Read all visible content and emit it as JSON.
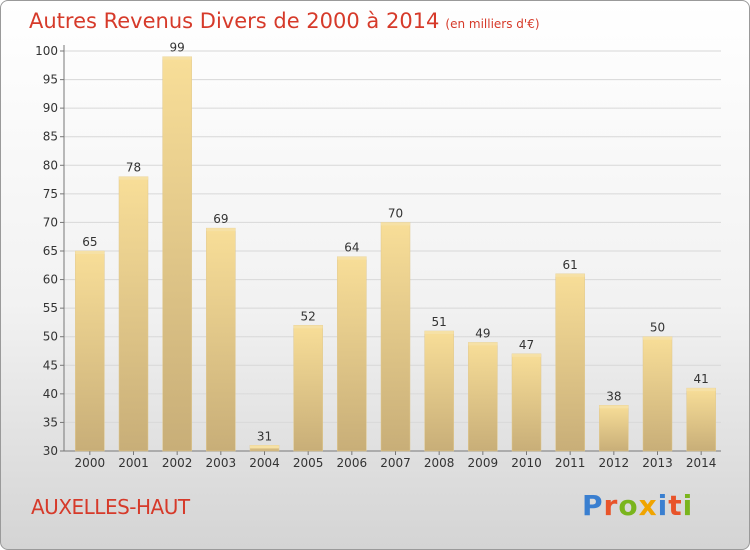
{
  "chart_data": {
    "type": "bar",
    "title": "Autres Revenus Divers de 2000 à 2014",
    "subtitle": "(en milliers d'€)",
    "categories": [
      "2000",
      "2001",
      "2002",
      "2003",
      "2004",
      "2005",
      "2006",
      "2007",
      "2008",
      "2009",
      "2010",
      "2011",
      "2012",
      "2013",
      "2014"
    ],
    "values": [
      65,
      78,
      99,
      69,
      31,
      52,
      64,
      70,
      51,
      49,
      47,
      61,
      38,
      50,
      41
    ],
    "ylim": [
      30,
      100
    ],
    "yticks": [
      30,
      35,
      40,
      45,
      50,
      55,
      60,
      65,
      70,
      75,
      80,
      85,
      90,
      95,
      100
    ],
    "grid": true
  },
  "footer": {
    "town": "AUXELLES-HAUT",
    "logo_text": "Proxiti"
  },
  "colors": {
    "title": "#d63a2a",
    "bar_light": "#f7dc96",
    "bar_dark": "#c9b07a",
    "logo": [
      "#3a7fd0",
      "#e8542a",
      "#7ab51d",
      "#f0a400",
      "#3a7fd0",
      "#e8542a",
      "#7ab51d"
    ]
  }
}
